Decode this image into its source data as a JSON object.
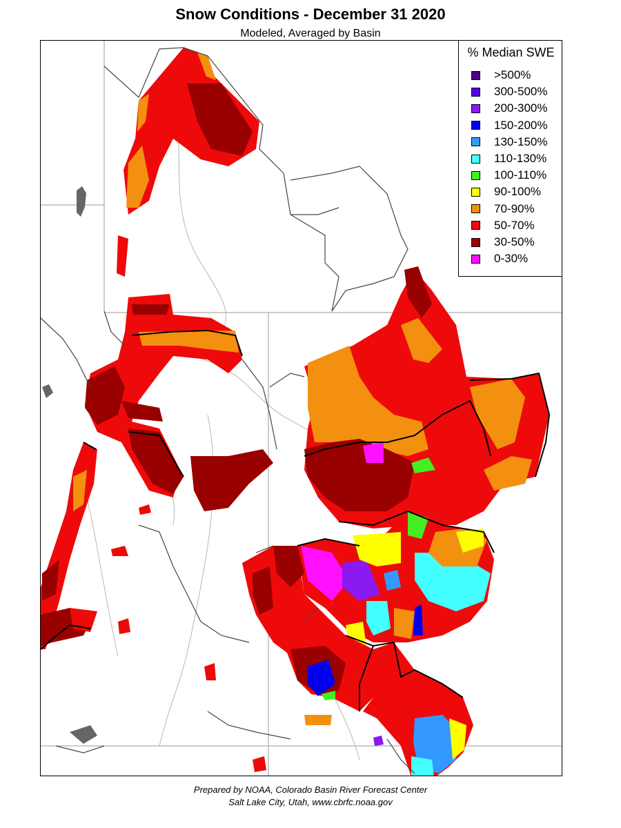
{
  "title": "Snow Conditions - December 31 2020",
  "subtitle": "Modeled, Averaged by Basin",
  "legend": {
    "title": "% Median SWE",
    "items": [
      {
        "label": ">500%",
        "color": "#4b0082"
      },
      {
        "label": "300-500%",
        "color": "#5a00e0"
      },
      {
        "label": "200-300%",
        "color": "#8a1af0"
      },
      {
        "label": "150-200%",
        "color": "#0000ee"
      },
      {
        "label": "130-150%",
        "color": "#3399ff"
      },
      {
        "label": "110-130%",
        "color": "#44ffff"
      },
      {
        "label": "100-110%",
        "color": "#44ee22"
      },
      {
        "label": "90-100%",
        "color": "#ffff00"
      },
      {
        "label": "70-90%",
        "color": "#f39010"
      },
      {
        "label": "50-70%",
        "color": "#ee0a0a"
      },
      {
        "label": "30-50%",
        "color": "#990000"
      },
      {
        "label": "0-30%",
        "color": "#ff10ff"
      }
    ]
  },
  "credits": {
    "line1": "Prepared by NOAA, Colorado Basin River Forecast Center",
    "line2": "Salt Lake City, Utah, www.cbrfc.noaa.gov"
  }
}
